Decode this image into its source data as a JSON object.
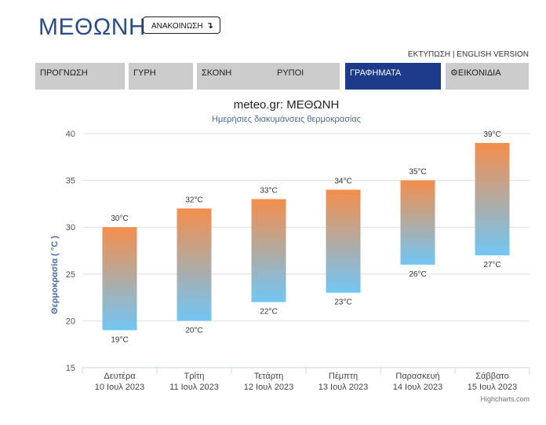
{
  "header": {
    "title": "ΜΕΘΩΝΗ",
    "announce_label": "ΑΝΑΚΟΙΝΩΣΗ",
    "announce_icon": "↴",
    "print_link": "ΕΚΤΥΠΩΣΗ",
    "separator": "|",
    "english_link": "ENGLISH VERSION"
  },
  "tabs": [
    {
      "label": "ΠΡΟΓΝΩΣΗ",
      "active": false
    },
    {
      "label": "ΓΥΡΗ",
      "active": false
    },
    {
      "label": "ΣΚΟΝΗ",
      "active": false
    },
    {
      "label": "ΡΥΠΟΙ",
      "active": false
    },
    {
      "label": "ΓΡΑΦΗΜΑΤΑ",
      "active": true
    },
    {
      "label": "ΕΙΚΟΝΙΔΙΑ",
      "active": false,
      "icon": "gear-icon"
    }
  ],
  "colors": {
    "accent": "#1e3a8a",
    "title": "#2b4c8c",
    "tab_bg": "#cbcbcb",
    "bar_top": "#f48e4c",
    "bar_bottom": "#71c6f5"
  },
  "chart_data": {
    "type": "bar",
    "title": "meteo.gr: ΜΕΘΩΝΗ",
    "subtitle": "Ημερήσιες διακυμάνσεις θερμοκρασίας",
    "ylabel": "Θερμοκρασία ( °C )",
    "ylim": [
      15,
      40
    ],
    "yticks": [
      15,
      20,
      25,
      30,
      35,
      40
    ],
    "grid": true,
    "categories": [
      [
        "Δευτέρα",
        "10 Ιουλ 2023"
      ],
      [
        "Τρίτη",
        "11 Ιουλ 2023"
      ],
      [
        "Τετάρτη",
        "12 Ιουλ 2023"
      ],
      [
        "Πέμπτη",
        "13 Ιουλ 2023"
      ],
      [
        "Παρασκευή",
        "14 Ιουλ 2023"
      ],
      [
        "Σάββατο",
        "15 Ιουλ 2023"
      ]
    ],
    "series": [
      {
        "low": [
          19,
          20,
          22,
          23,
          26,
          27
        ],
        "high": [
          30,
          32,
          33,
          34,
          35,
          39
        ]
      }
    ],
    "unit": "°C",
    "credits": "Highcharts.com"
  }
}
